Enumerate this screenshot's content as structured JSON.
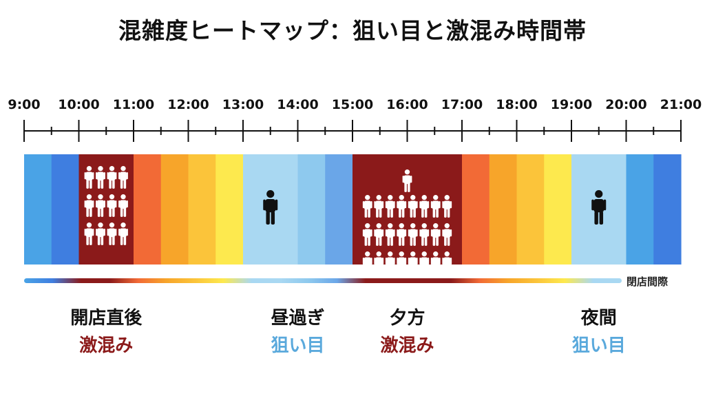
{
  "chart_data": {
    "type": "heatmap",
    "title": "混雑度ヒートマップ：狙い目と激混み時間帯",
    "tick_labels": [
      "9:00",
      "10:00",
      "11:00",
      "12:00",
      "13:00",
      "14:00",
      "15:00",
      "16:00",
      "17:00",
      "18:00",
      "19:00",
      "20:00",
      "21:00"
    ],
    "x_range": [
      "9:00",
      "21:00"
    ],
    "segment_minutes": 30,
    "segment_colors": [
      "#4aa3e6",
      "#3f7ee0",
      "#8b1a1a",
      "#8b1a1a",
      "#f26a36",
      "#f7a52a",
      "#fbc43a",
      "#fde94e",
      "#a9d8f2",
      "#a9d8f2",
      "#8ec9ee",
      "#6aa6e8",
      "#8b1a1a",
      "#8b1a1a",
      "#8b1a1a",
      "#8b1a1a",
      "#f26a36",
      "#f7a52a",
      "#fbc43a",
      "#fde94e",
      "#a9d8f2",
      "#a9d8f2",
      "#4aa3e6",
      "#3f7ee0"
    ],
    "crowd_icons": [
      {
        "time": "10:30",
        "people": 12,
        "layout": [
          4,
          4,
          4
        ]
      },
      {
        "time": "13:30",
        "people": 1,
        "layout": [
          1
        ]
      },
      {
        "time": "16:00",
        "people": 25,
        "layout": [
          1,
          8,
          8,
          8
        ]
      },
      {
        "time": "19:30",
        "people": 1,
        "layout": [
          1
        ]
      }
    ],
    "timeline_colors": [
      "#4aa3e6",
      "#3f7ee0",
      "#8b1a1a",
      "#8b1a1a",
      "#f26a36",
      "#f7a52a",
      "#fbc43a",
      "#fde94e",
      "#a9d8f2",
      "#a9d8f2",
      "#8ec9ee",
      "#6aa6e8",
      "#8b1a1a",
      "#8b1a1a",
      "#8b1a1a",
      "#8b1a1a",
      "#f26a36",
      "#f7a52a",
      "#fbc43a",
      "#fde94e",
      "#a9d8f2",
      "#a9d8f2"
    ],
    "timeline_end_label": "閉店間際",
    "periods": [
      {
        "name": "開店直後",
        "status": "激混み",
        "status_color": "#8b1a1a",
        "time": "10:30"
      },
      {
        "name": "昼過ぎ",
        "status": "狙い目",
        "status_color": "#5aa9dc",
        "time": "14:00"
      },
      {
        "name": "夕方",
        "status": "激混み",
        "status_color": "#8b1a1a",
        "time": "16:00"
      },
      {
        "name": "夜間",
        "status": "狙い目",
        "status_color": "#5aa9dc",
        "time": "19:30"
      }
    ]
  }
}
